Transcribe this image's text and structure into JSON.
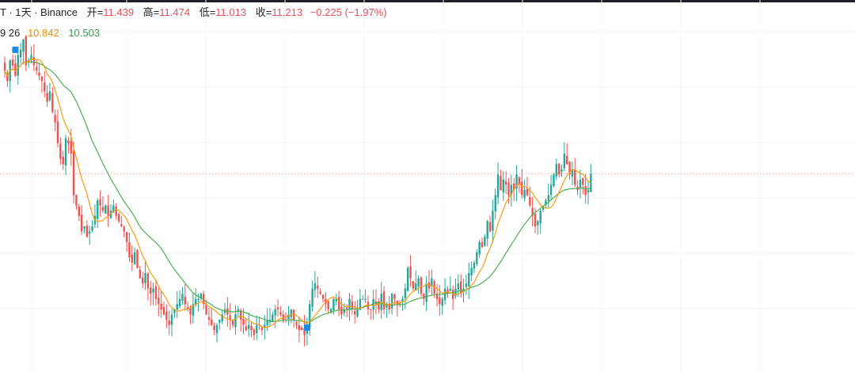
{
  "legend": {
    "symbol": "T · 1天 · Binance",
    "open_label": "开=",
    "open": "11.439",
    "high_label": "高=",
    "high": "11.474",
    "low_label": "低=",
    "low": "11.013",
    "close_label": "收=",
    "close": "11.213",
    "change": "−0.225 (−1.97%)",
    "ma_cut": "9 26",
    "ma1": "10.842",
    "ma2": "10.503"
  },
  "colors": {
    "up": "#26a69a",
    "down": "#ef5350",
    "fast_ma": "#f39c12",
    "slow_ma": "#4caf50",
    "marker": "#1e88e5"
  },
  "chart_data": {
    "type": "candlestick",
    "interval": "1天",
    "exchange": "Binance",
    "ylim": [
      7.85,
      13.95
    ],
    "last_price": 11.213,
    "moving_averages": [
      {
        "period": 9,
        "value": 10.842
      },
      {
        "period": 26,
        "value": 10.503
      }
    ],
    "closes": [
      13.2,
      13.0,
      13.4,
      13.3,
      13.1,
      13.5,
      13.6,
      13.8,
      13.3,
      13.4,
      13.5,
      13.3,
      13.2,
      13.1,
      13.0,
      12.8,
      12.6,
      12.8,
      12.4,
      12.2,
      11.8,
      11.5,
      11.4,
      11.9,
      11.8,
      11.6,
      10.8,
      10.6,
      10.4,
      10.1,
      10.2,
      10.0,
      10.1,
      10.2,
      10.4,
      10.7,
      10.6,
      10.5,
      10.6,
      10.4,
      10.5,
      10.6,
      10.4,
      10.3,
      10.2,
      10.1,
      9.9,
      9.6,
      9.5,
      9.7,
      9.4,
      9.2,
      9.1,
      9.3,
      9.0,
      8.9,
      9.0,
      8.8,
      8.7,
      8.6,
      8.5,
      8.4,
      8.3,
      8.5,
      8.6,
      8.7,
      8.8,
      8.9,
      8.7,
      8.6,
      8.5,
      8.7,
      8.8,
      8.8,
      8.9,
      8.7,
      8.5,
      8.4,
      8.3,
      8.2,
      8.3,
      8.4,
      8.5,
      8.6,
      8.5,
      8.4,
      8.3,
      8.5,
      8.6,
      8.4,
      8.3,
      8.2,
      8.3,
      8.2,
      8.1,
      8.3,
      8.3,
      8.2,
      8.3,
      8.4,
      8.4,
      8.5,
      8.6,
      8.6,
      8.5,
      8.4,
      8.4,
      8.5,
      8.6,
      8.4,
      8.3,
      8.2,
      8.2,
      8.1,
      8.3,
      8.7,
      9.0,
      9.1,
      9.0,
      8.9,
      8.8,
      8.7,
      8.6,
      8.6,
      8.8,
      8.8,
      8.6,
      8.5,
      8.6,
      8.6,
      8.8,
      8.6,
      8.5,
      8.6,
      8.8,
      8.8,
      8.8,
      8.6,
      8.6,
      8.8,
      8.7,
      8.6,
      8.9,
      8.6,
      8.7,
      8.6,
      8.9,
      8.8,
      8.7,
      8.7,
      8.8,
      9.0,
      9.4,
      9.2,
      9.0,
      9.1,
      9.2,
      8.9,
      8.8,
      9.1,
      9.0,
      9.2,
      8.9,
      8.8,
      8.7,
      8.8,
      9.0,
      8.9,
      9.0,
      8.8,
      9.0,
      9.1,
      8.9,
      9.0,
      9.1,
      9.3,
      9.4,
      9.5,
      9.7,
      9.9,
      9.8,
      10.0,
      10.3,
      10.1,
      10.5,
      10.8,
      11.2,
      10.9,
      11.1,
      11.0,
      10.8,
      11.0,
      10.9,
      11.2,
      11.0,
      10.8,
      10.9,
      10.8,
      10.6,
      10.4,
      10.2,
      10.3,
      10.5,
      10.6,
      10.7,
      10.8,
      11.0,
      11.2,
      11.4,
      11.2,
      11.3,
      11.6,
      11.4,
      11.2,
      11.3,
      11.0,
      10.9,
      11.1,
      11.0,
      10.8,
      10.9,
      11.213
    ]
  }
}
